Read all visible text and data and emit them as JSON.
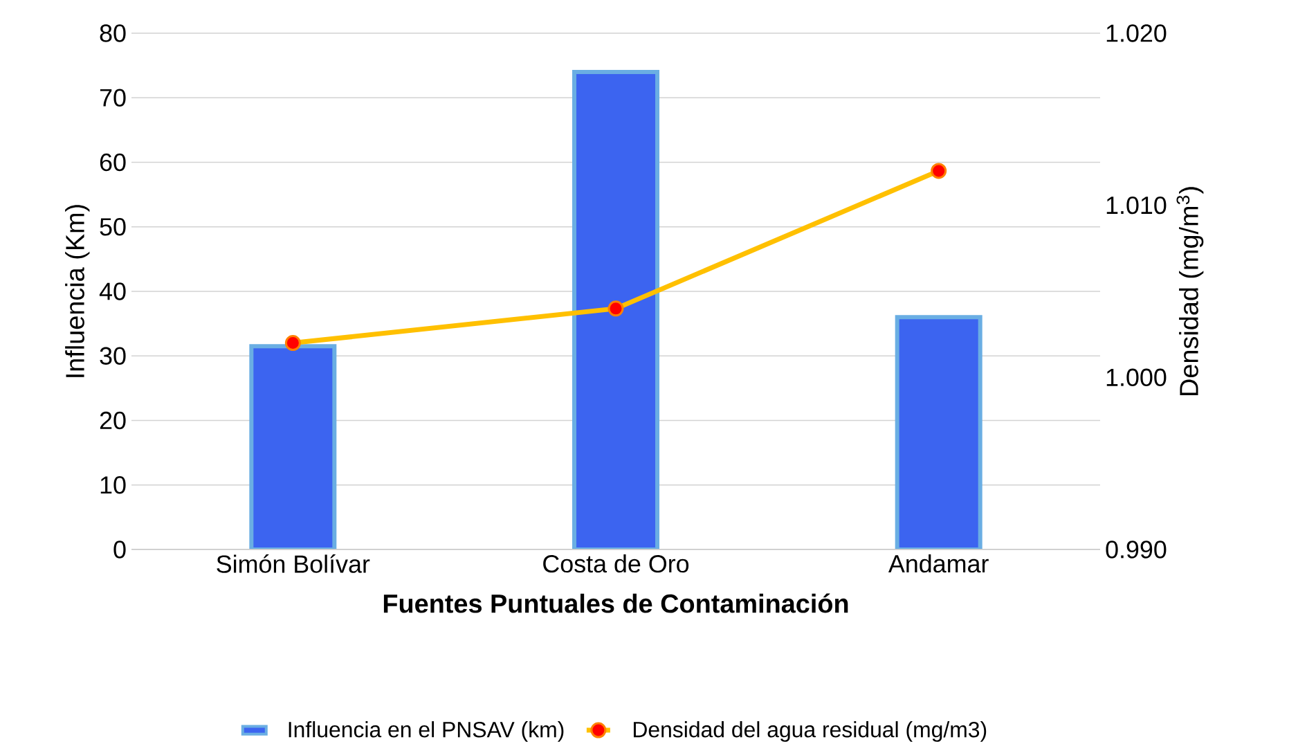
{
  "chart_data": {
    "type": "bar",
    "xlabel": "Fuentes Puntuales de Contaminación",
    "ylabel": "Influencia (Km)",
    "y2label": "Densidad (mg/m$^{3}$)",
    "categories": [
      "Simón Bolívar",
      "Costa de Oro",
      "Andamar"
    ],
    "series": [
      {
        "name": "Influencia en el PNSAV (km)",
        "color": "#3c64f0",
        "values": [
          31.5,
          74,
          36
        ]
      },
      {
        "name": "Densidad del agua residual (mg/m3)",
        "type": "line",
        "axis": "y2",
        "color": "#ffc000",
        "marker": "circle",
        "values": [
          1.002,
          1.004,
          1.012
        ]
      }
    ],
    "ylim": [
      0,
      80
    ],
    "yticks": [
      0,
      10,
      20,
      30,
      40,
      50,
      60,
      70,
      80
    ],
    "y2lim": [
      0.99,
      1.02
    ],
    "y2ticks": [
      {
        "value": 0.99,
        "label": "0.990"
      },
      {
        "value": 1.0,
        "label": "1.000"
      },
      {
        "value": 1.01,
        "label": "1.010"
      },
      {
        "value": 1.02,
        "label": "1.020"
      }
    ],
    "grid": "y",
    "legend": "bottom"
  }
}
